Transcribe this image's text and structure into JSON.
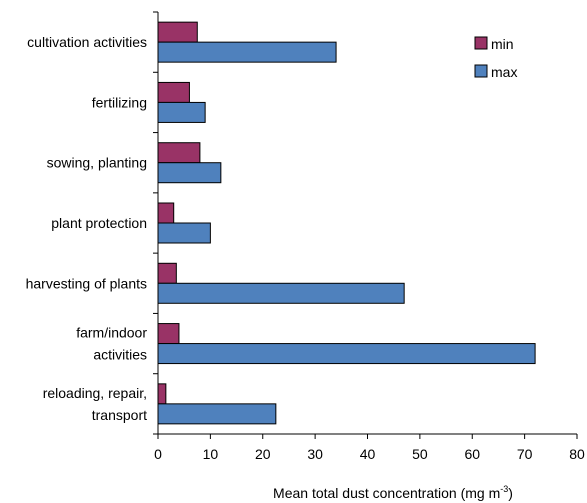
{
  "chart_data": {
    "type": "bar",
    "orientation": "horizontal",
    "categories": [
      [
        "cultivation activities"
      ],
      [
        "fertilizing"
      ],
      [
        "sowing, planting"
      ],
      [
        "plant protection"
      ],
      [
        "harvesting of plants"
      ],
      [
        "farm/indoor",
        "activities"
      ],
      [
        "reloading, repair,",
        "transport"
      ]
    ],
    "series": [
      {
        "name": "min",
        "color": "#993366",
        "values": [
          7.5,
          6,
          8,
          3,
          3.5,
          4,
          1.5
        ]
      },
      {
        "name": "max",
        "color": "#4f81bd",
        "values": [
          34,
          9,
          12,
          10,
          47,
          72,
          22.5
        ]
      }
    ],
    "xlim": [
      0,
      80
    ],
    "xticks": [
      0,
      10,
      20,
      30,
      40,
      50,
      60,
      70,
      80
    ],
    "xlabel": {
      "main": "Mean total dust concentration (mg m",
      "sup": "-3",
      "tail": ")"
    },
    "ylabel": "",
    "title": "",
    "legend": {
      "position": "top-right",
      "entries": [
        "min",
        "max"
      ]
    },
    "grid": false
  }
}
